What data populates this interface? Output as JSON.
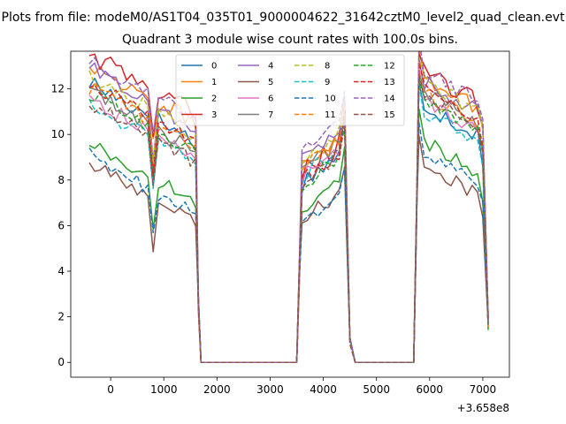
{
  "chart_data": {
    "type": "line",
    "suptitle": "Plots from file: modeM0/AS1T04_035T01_9000004622_31642cztM0_level2_quad_clean.evt",
    "title": "Quadrant 3 module wise count rates with 100.0s bins.",
    "xlabel": "",
    "ylabel": "",
    "x_offset_label": "+3.658e8",
    "xlim": [
      -750,
      7500
    ],
    "ylim": [
      -0.65,
      13.65
    ],
    "xticks": [
      0,
      1000,
      2000,
      3000,
      4000,
      5000,
      6000,
      7000
    ],
    "yticks": [
      0,
      2,
      4,
      6,
      8,
      10,
      12
    ],
    "grid": false,
    "legend_position": "top-center",
    "legend_columns": 4,
    "active_windows": [
      {
        "start": -400,
        "end": 1600
      },
      {
        "start": 3600,
        "end": 4400
      },
      {
        "start": 5800,
        "end": 7100
      }
    ],
    "gaps": [
      {
        "start": 1700,
        "end": 3500
      },
      {
        "start": 4600,
        "end": 5700
      }
    ],
    "series": [
      {
        "name": "0",
        "color": "#1f77b4",
        "dash": "solid",
        "level": [
          11.0,
          8.5,
          10.0
        ],
        "amp": 0.45
      },
      {
        "name": "1",
        "color": "#ff7f0e",
        "dash": "solid",
        "level": [
          11.8,
          9.3,
          11.2
        ],
        "amp": 0.4
      },
      {
        "name": "2",
        "color": "#2ca02c",
        "dash": "solid",
        "level": [
          8.3,
          7.3,
          8.4
        ],
        "amp": 0.35
      },
      {
        "name": "3",
        "color": "#d62728",
        "dash": "solid",
        "level": [
          12.2,
          9.0,
          11.4
        ],
        "amp": 0.45
      },
      {
        "name": "4",
        "color": "#9467bd",
        "dash": "solid",
        "level": [
          11.6,
          9.6,
          11.0
        ],
        "amp": 0.4
      },
      {
        "name": "5",
        "color": "#8c564b",
        "dash": "solid",
        "level": [
          7.4,
          6.8,
          7.4
        ],
        "amp": 0.35
      },
      {
        "name": "6",
        "color": "#e377c2",
        "dash": "solid",
        "level": [
          10.3,
          8.7,
          10.2
        ],
        "amp": 0.35
      },
      {
        "name": "7",
        "color": "#7f7f7f",
        "dash": "solid",
        "level": [
          10.6,
          9.0,
          10.5
        ],
        "amp": 0.35
      },
      {
        "name": "8",
        "color": "#bcbd22",
        "dash": "dashed",
        "level": [
          11.3,
          9.4,
          11.0
        ],
        "amp": 0.35
      },
      {
        "name": "9",
        "color": "#17becf",
        "dash": "dashed",
        "level": [
          10.0,
          8.8,
          9.7
        ],
        "amp": 0.35
      },
      {
        "name": "10",
        "color": "#1f77b4",
        "dash": "dashed",
        "level": [
          7.8,
          6.6,
          7.8
        ],
        "amp": 0.35
      },
      {
        "name": "11",
        "color": "#ff7f0e",
        "dash": "dashed",
        "level": [
          10.8,
          9.1,
          10.5
        ],
        "amp": 0.35
      },
      {
        "name": "12",
        "color": "#2ca02c",
        "dash": "dashed",
        "level": [
          10.5,
          8.4,
          10.1
        ],
        "amp": 0.35
      },
      {
        "name": "13",
        "color": "#d62728",
        "dash": "dashed",
        "level": [
          11.0,
          8.6,
          10.6
        ],
        "amp": 0.35
      },
      {
        "name": "14",
        "color": "#9467bd",
        "dash": "dashed",
        "level": [
          12.0,
          10.0,
          11.5
        ],
        "amp": 0.35
      },
      {
        "name": "15",
        "color": "#8c564b",
        "dash": "dashed",
        "level": [
          10.1,
          8.5,
          10.4
        ],
        "amp": 0.35
      }
    ]
  }
}
